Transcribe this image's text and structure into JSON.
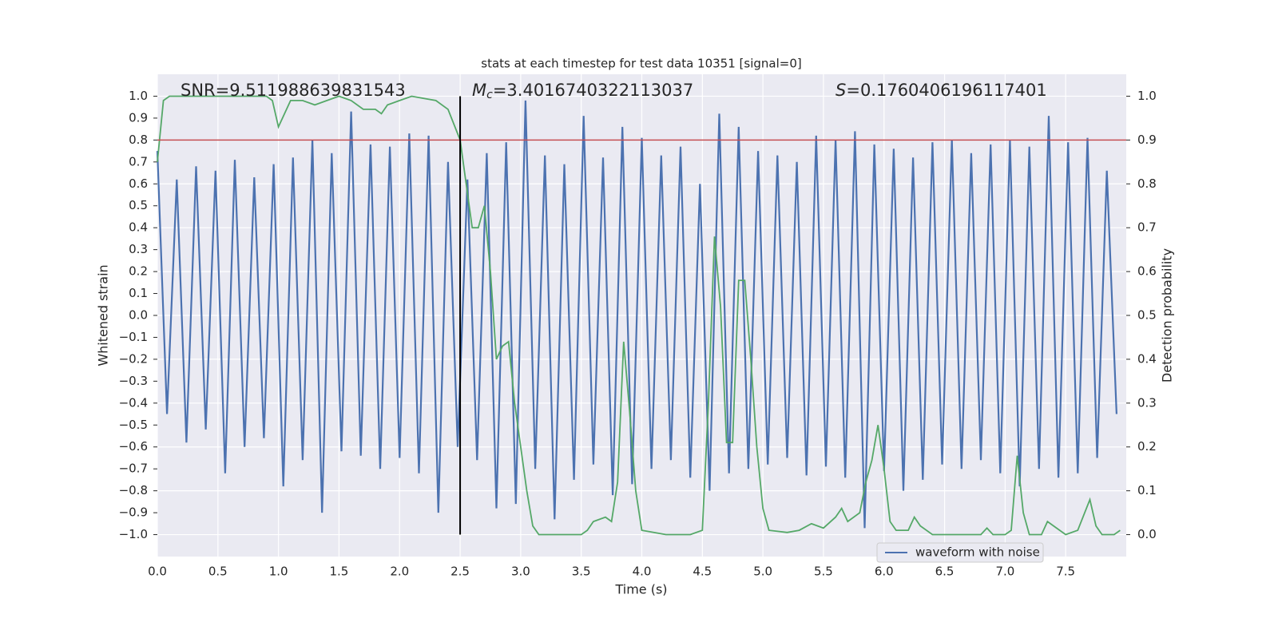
{
  "chart_data": {
    "type": "line",
    "title": "stats at each timestep for test data 10351 [signal=0]",
    "xlabel": "Time (s)",
    "ylabel": "Whitened strain",
    "y2label": "Detection probability",
    "xlim": [
      0,
      8
    ],
    "ylim": [
      -1.1,
      1.1
    ],
    "y2lim": [
      -0.05,
      1.05
    ],
    "grid": true,
    "legend": "lower right",
    "xticks": [
      {
        "value": 0,
        "label": "0.0"
      },
      0.5,
      {
        "value": 1,
        "label": "1.0"
      },
      1.5,
      {
        "value": 2,
        "label": "2.0"
      },
      2.5,
      {
        "value": 3,
        "label": "3.0"
      },
      3.5,
      {
        "value": 4,
        "label": "4.0"
      },
      4.5,
      {
        "value": 5,
        "label": "5.0"
      },
      5.5,
      {
        "value": 6,
        "label": "6.0"
      },
      6.5,
      {
        "value": 7,
        "label": "7.0"
      },
      7.5
    ],
    "yticks": [
      {
        "value": -1,
        "label": "−1.0"
      },
      {
        "value": -0.9,
        "label": "−0.9"
      },
      {
        "value": -0.8,
        "label": "−0.8"
      },
      {
        "value": -0.7,
        "label": "−0.7"
      },
      {
        "value": -0.6,
        "label": "−0.6"
      },
      {
        "value": -0.5,
        "label": "−0.5"
      },
      {
        "value": -0.4,
        "label": "−0.4"
      },
      {
        "value": -0.3,
        "label": "−0.3"
      },
      {
        "value": -0.2,
        "label": "−0.2"
      },
      {
        "value": -0.1,
        "label": "−0.1"
      },
      {
        "value": 0,
        "label": "0.0"
      },
      0.1,
      0.2,
      0.3,
      0.4,
      0.5,
      0.6,
      0.7,
      0.8,
      0.9,
      {
        "value": 1,
        "label": "1.0"
      }
    ],
    "y2ticks": [
      {
        "value": 0,
        "label": "0.0"
      },
      0.1,
      0.2,
      0.3,
      0.4,
      0.5,
      0.6,
      0.7,
      0.8,
      0.9,
      {
        "value": 1,
        "label": "1.0"
      }
    ],
    "annotations": [
      {
        "text": "SNR=9.511988639831543"
      },
      {
        "symbol": "M",
        "subscript": "c",
        "text": "=3.4016740322113037"
      },
      {
        "symbol": "S",
        "text": "=0.1760406196117401"
      }
    ],
    "vline": {
      "x": 2.5,
      "ymin": -1,
      "ymax": 1,
      "color": "#000000"
    },
    "hline": {
      "y": 0.9,
      "axis": "y2",
      "color": "#c44e52"
    },
    "series": [
      {
        "name": "waveform with noise",
        "color": "#4c72b0",
        "x": [
          0,
          0.08,
          0.16,
          0.24,
          0.32,
          0.4,
          0.48,
          0.56,
          0.64,
          0.72,
          0.8,
          0.88,
          0.96,
          1.04,
          1.12,
          1.2,
          1.28,
          1.36,
          1.44,
          1.52,
          1.6,
          1.68,
          1.76,
          1.84,
          1.92,
          2,
          2.08,
          2.16,
          2.24,
          2.32,
          2.4,
          2.48,
          2.56,
          2.64,
          2.72,
          2.8,
          2.88,
          2.96,
          3.04,
          3.12,
          3.2,
          3.28,
          3.36,
          3.44,
          3.52,
          3.6,
          3.68,
          3.76,
          3.84,
          3.92,
          4,
          4.08,
          4.16,
          4.24,
          4.32,
          4.4,
          4.48,
          4.56,
          4.64,
          4.72,
          4.8,
          4.88,
          4.96,
          5.04,
          5.12,
          5.2,
          5.28,
          5.36,
          5.44,
          5.52,
          5.6,
          5.68,
          5.76,
          5.84,
          5.92,
          6,
          6.08,
          6.16,
          6.24,
          6.32,
          6.4,
          6.48,
          6.56,
          6.64,
          6.72,
          6.8,
          6.88,
          6.96,
          7.04,
          7.12,
          7.2,
          7.28,
          7.36,
          7.44,
          7.52,
          7.6,
          7.68,
          7.76,
          7.84,
          7.92
        ],
        "values": [
          0.75,
          -0.45,
          0.62,
          -0.58,
          0.68,
          -0.52,
          0.66,
          -0.72,
          0.71,
          -0.6,
          0.63,
          -0.56,
          0.69,
          -0.78,
          0.72,
          -0.66,
          0.8,
          -0.9,
          0.74,
          -0.62,
          0.93,
          -0.64,
          0.78,
          -0.7,
          0.77,
          -0.65,
          0.83,
          -0.72,
          0.82,
          -0.9,
          0.7,
          -0.6,
          0.62,
          -0.66,
          0.74,
          -0.88,
          0.79,
          -0.86,
          0.98,
          -0.7,
          0.73,
          -0.93,
          0.69,
          -0.75,
          0.91,
          -0.68,
          0.72,
          -0.82,
          0.86,
          -0.77,
          0.81,
          -0.7,
          0.73,
          -0.66,
          0.77,
          -0.74,
          0.6,
          -0.8,
          0.92,
          -0.72,
          0.86,
          -0.7,
          0.75,
          -0.68,
          0.73,
          -0.65,
          0.7,
          -0.73,
          0.82,
          -0.69,
          0.8,
          -0.74,
          0.84,
          -0.97,
          0.78,
          -0.71,
          0.76,
          -0.8,
          0.72,
          -0.75,
          0.79,
          -0.68,
          0.8,
          -0.7,
          0.74,
          -0.66,
          0.78,
          -0.72,
          0.8,
          -0.78,
          0.77,
          -0.7,
          0.91,
          -0.74,
          0.79,
          -0.72,
          0.81,
          -0.65,
          0.66,
          -0.45
        ]
      },
      {
        "color": "#55a868",
        "axis": "y2",
        "x": [
          0,
          0.05,
          0.1,
          0.3,
          0.6,
          0.9,
          0.95,
          1,
          1.05,
          1.1,
          1.2,
          1.3,
          1.4,
          1.5,
          1.6,
          1.7,
          1.8,
          1.85,
          1.9,
          2,
          2.1,
          2.2,
          2.3,
          2.4,
          2.5,
          2.55,
          2.6,
          2.65,
          2.7,
          2.75,
          2.8,
          2.85,
          2.9,
          2.95,
          3,
          3.05,
          3.1,
          3.15,
          3.3,
          3.5,
          3.55,
          3.6,
          3.7,
          3.75,
          3.8,
          3.85,
          3.9,
          3.95,
          4,
          4.2,
          4.4,
          4.5,
          4.55,
          4.6,
          4.65,
          4.7,
          4.75,
          4.8,
          4.85,
          4.9,
          4.95,
          5,
          5.05,
          5.2,
          5.3,
          5.4,
          5.5,
          5.6,
          5.65,
          5.7,
          5.8,
          5.85,
          5.9,
          5.95,
          6,
          6.05,
          6.1,
          6.2,
          6.25,
          6.3,
          6.4,
          6.8,
          6.85,
          6.9,
          7,
          7.05,
          7.1,
          7.15,
          7.2,
          7.3,
          7.35,
          7.4,
          7.5,
          7.6,
          7.7,
          7.75,
          7.8,
          7.9,
          7.95
        ],
        "values": [
          0.85,
          0.99,
          1,
          1,
          1,
          1,
          0.99,
          0.93,
          0.96,
          0.99,
          0.99,
          0.98,
          0.99,
          1,
          0.99,
          0.97,
          0.97,
          0.96,
          0.98,
          0.99,
          1,
          0.995,
          0.99,
          0.97,
          0.9,
          0.8,
          0.7,
          0.7,
          0.75,
          0.6,
          0.4,
          0.43,
          0.44,
          0.3,
          0.2,
          0.1,
          0.02,
          0,
          0,
          0,
          0.01,
          0.03,
          0.04,
          0.03,
          0.12,
          0.44,
          0.28,
          0.1,
          0.01,
          0,
          0,
          0.01,
          0.3,
          0.68,
          0.52,
          0.21,
          0.21,
          0.58,
          0.58,
          0.4,
          0.2,
          0.06,
          0.01,
          0.005,
          0.01,
          0.025,
          0.015,
          0.04,
          0.06,
          0.03,
          0.05,
          0.12,
          0.17,
          0.25,
          0.15,
          0.03,
          0.01,
          0.01,
          0.04,
          0.02,
          0,
          0,
          0.015,
          0,
          0,
          0.01,
          0.18,
          0.05,
          0,
          0,
          0.03,
          0.02,
          0,
          0.01,
          0.08,
          0.02,
          0,
          0,
          0.01
        ]
      }
    ]
  }
}
